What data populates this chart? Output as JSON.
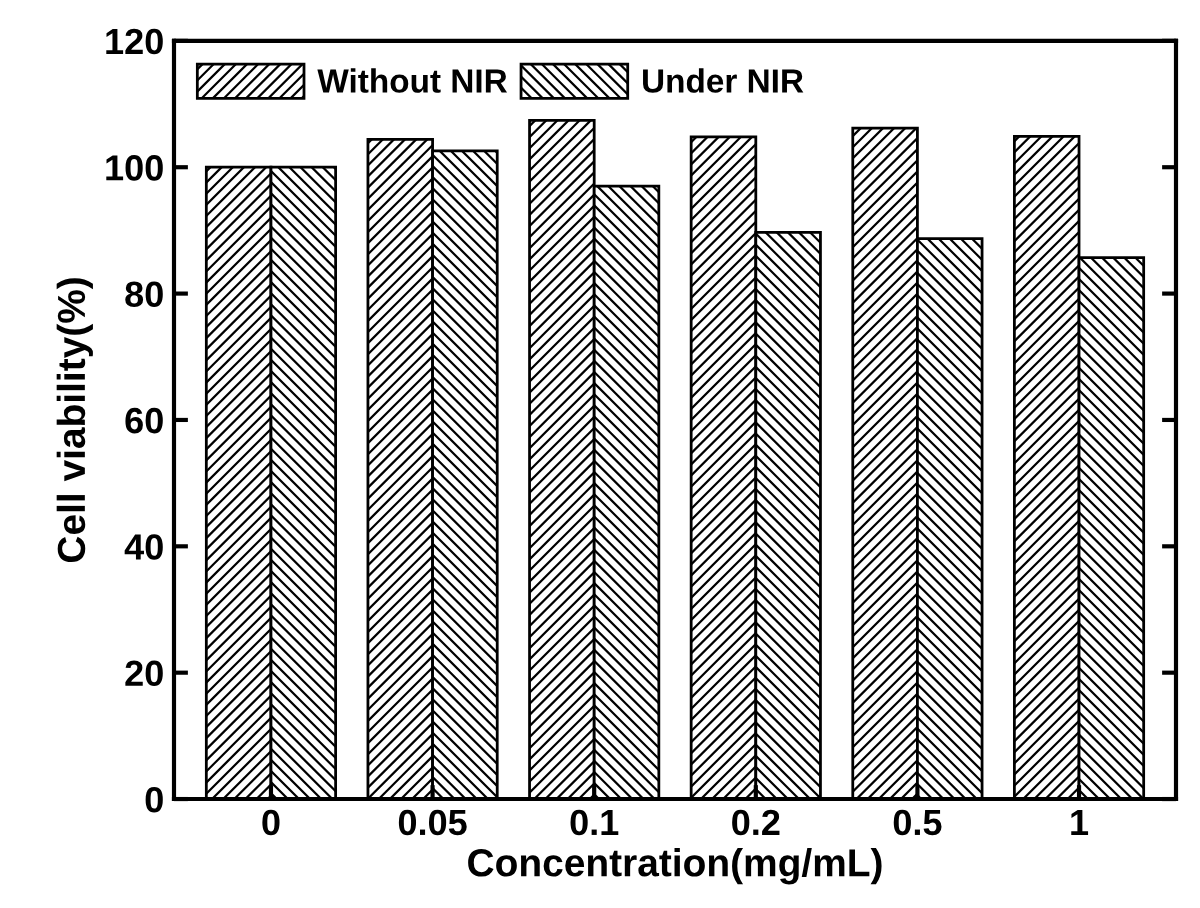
{
  "chart_data": {
    "type": "bar",
    "xlabel": "Concentration(mg/mL)",
    "ylabel": "Cell viability(%)",
    "categories": [
      "0",
      "0.05",
      "0.1",
      "0.2",
      "0.5",
      "1"
    ],
    "series": [
      {
        "name": "Without NIR",
        "color": "#000000",
        "values": [
          100,
          104.4,
          107.4,
          104.8,
          106.2,
          104.9
        ]
      },
      {
        "name": "Under NIR",
        "color": "#000000",
        "values": [
          100,
          102.6,
          97.0,
          89.7,
          88.7,
          85.7
        ]
      }
    ],
    "ylim": [
      0,
      120
    ],
    "yticks": [
      0,
      20,
      40,
      60,
      80,
      100,
      120
    ],
    "legend": "top left",
    "grid": false
  }
}
